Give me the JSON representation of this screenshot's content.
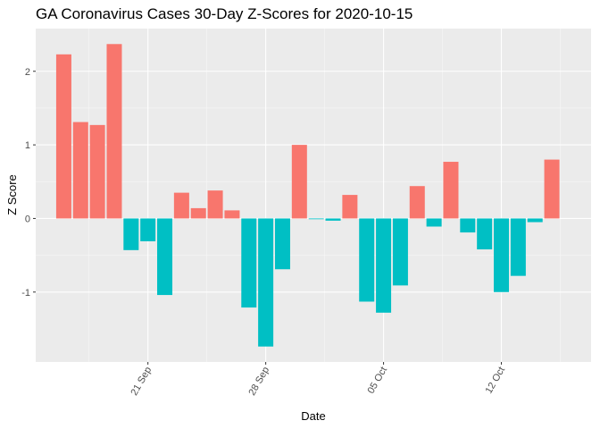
{
  "chart_data": {
    "type": "bar",
    "title": "GA Coronavirus Cases 30-Day Z-Scores for 2020-10-15",
    "xlabel": "Date",
    "ylabel": "Z Score",
    "dates": [
      "2020-09-16",
      "2020-09-17",
      "2020-09-18",
      "2020-09-19",
      "2020-09-20",
      "2020-09-21",
      "2020-09-22",
      "2020-09-23",
      "2020-09-24",
      "2020-09-25",
      "2020-09-26",
      "2020-09-27",
      "2020-09-28",
      "2020-09-29",
      "2020-09-30",
      "2020-10-01",
      "2020-10-02",
      "2020-10-03",
      "2020-10-04",
      "2020-10-05",
      "2020-10-06",
      "2020-10-07",
      "2020-10-08",
      "2020-10-09",
      "2020-10-10",
      "2020-10-11",
      "2020-10-12",
      "2020-10-13",
      "2020-10-14",
      "2020-10-15"
    ],
    "values": [
      2.23,
      1.31,
      1.27,
      2.37,
      -0.43,
      -0.31,
      -1.04,
      0.35,
      0.14,
      0.38,
      0.11,
      -1.21,
      -1.74,
      -0.69,
      1.0,
      -0.01,
      -0.03,
      0.32,
      -1.13,
      -1.28,
      -0.91,
      0.44,
      -0.11,
      0.77,
      -0.19,
      -0.42,
      -1.0,
      -0.78,
      -0.05,
      0.8
    ],
    "x_ticks": [
      {
        "date": "2020-09-21",
        "label": "21 Sep"
      },
      {
        "date": "2020-09-28",
        "label": "28 Sep"
      },
      {
        "date": "2020-10-05",
        "label": "05 Oct"
      },
      {
        "date": "2020-10-12",
        "label": "12 Oct"
      }
    ],
    "y_ticks": [
      -1,
      0,
      1,
      2
    ],
    "ylim": [
      -1.95,
      2.58
    ],
    "colors": {
      "positive": "#F8766D",
      "negative": "#00BFC4",
      "panel": "#EBEBEB",
      "grid_major": "#FFFFFF"
    },
    "legend": "none"
  }
}
